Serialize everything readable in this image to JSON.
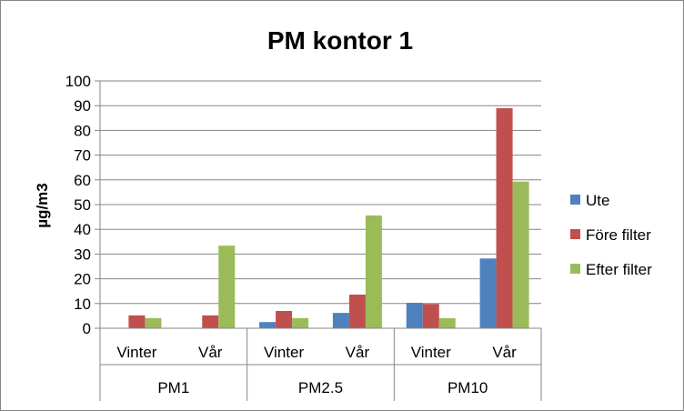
{
  "chart_data": {
    "type": "bar",
    "title": "PM kontor 1",
    "ylabel": "µg/m3",
    "xlabel": "",
    "ylim": [
      0,
      100
    ],
    "yticks": [
      0,
      10,
      20,
      30,
      40,
      50,
      60,
      70,
      80,
      90,
      100
    ],
    "grid": true,
    "legend_position": "right",
    "groups": [
      {
        "name": "PM1",
        "categories": [
          "Vinter",
          "Vår"
        ]
      },
      {
        "name": "PM2.5",
        "categories": [
          "Vinter",
          "Vår"
        ]
      },
      {
        "name": "PM10",
        "categories": [
          "Vinter",
          "Vår"
        ]
      }
    ],
    "categories": [
      "Vinter",
      "Vår",
      "Vinter",
      "Vår",
      "Vinter",
      "Vår"
    ],
    "series": [
      {
        "name": "Ute",
        "color": "#4F81BD",
        "values": [
          0,
          0,
          2.5,
          6.2,
          10.3,
          28.2
        ]
      },
      {
        "name": "Före filter",
        "color": "#C0504D",
        "values": [
          5.2,
          5.2,
          7.0,
          13.6,
          9.8,
          89.0
        ]
      },
      {
        "name": "Efter filter",
        "color": "#9BBB59",
        "values": [
          4.1,
          33.4,
          4.1,
          45.6,
          4.1,
          59.3
        ]
      }
    ]
  }
}
